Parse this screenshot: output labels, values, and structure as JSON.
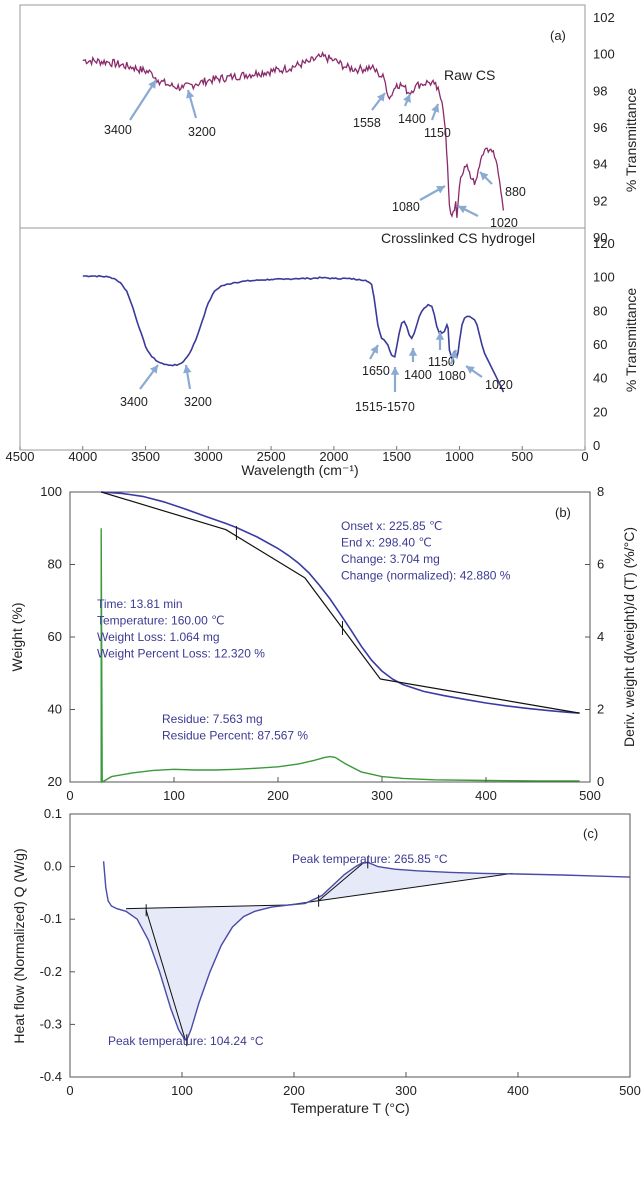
{
  "chart_data": [
    {
      "id": "a",
      "type": "line",
      "panel_label": "(a)",
      "xlabel": "Wavelength (cm⁻¹)",
      "xlim": [
        4500,
        0
      ],
      "x_ticks": [
        4500,
        4000,
        3500,
        3000,
        2500,
        2000,
        1500,
        1000,
        500,
        0
      ],
      "top": {
        "name": "Raw CS",
        "color": "#8a2a6a",
        "ylabel": "% Transmittance",
        "ylim": [
          90,
          102
        ],
        "y_ticks": [
          90,
          92,
          94,
          96,
          98,
          100,
          102
        ],
        "x": [
          4000,
          3800,
          3600,
          3450,
          3400,
          3300,
          3200,
          3100,
          3000,
          2800,
          2600,
          2400,
          2200,
          2100,
          2000,
          1900,
          1800,
          1700,
          1650,
          1600,
          1558,
          1500,
          1450,
          1400,
          1350,
          1300,
          1250,
          1200,
          1160,
          1150,
          1130,
          1110,
          1095,
          1080,
          1060,
          1040,
          1030,
          1020,
          1000,
          980,
          960,
          940,
          920,
          900,
          880,
          860,
          840,
          820,
          800,
          780,
          760,
          740,
          720,
          700,
          680,
          660,
          650
        ],
        "y": [
          99.7,
          99.6,
          99.3,
          99.0,
          98.6,
          98.3,
          98.2,
          98.4,
          98.6,
          98.8,
          99.0,
          99.2,
          99.6,
          99.9,
          99.7,
          99.3,
          99.2,
          99.3,
          99.0,
          98.7,
          97.6,
          98.4,
          98.3,
          97.9,
          98.3,
          98.4,
          98.5,
          98.4,
          97.9,
          97.6,
          97.0,
          95.8,
          94.0,
          91.8,
          91.2,
          91.5,
          92.0,
          91.1,
          92.8,
          93.4,
          93.9,
          94.0,
          93.6,
          93.2,
          92.9,
          93.3,
          93.9,
          94.5,
          94.8,
          94.9,
          94.8,
          94.7,
          94.4,
          94.0,
          93.1,
          92.1,
          91.5
        ]
      },
      "bottom": {
        "name": "Crosslinked CS hydrogel",
        "color": "#3a3a9a",
        "ylabel": "% Transmittance",
        "ylim": [
          0,
          120
        ],
        "y_ticks": [
          0,
          20,
          40,
          60,
          80,
          100,
          120
        ],
        "x": [
          4000,
          3900,
          3800,
          3750,
          3700,
          3650,
          3600,
          3550,
          3500,
          3450,
          3400,
          3350,
          3300,
          3250,
          3200,
          3150,
          3100,
          3050,
          3000,
          2950,
          2900,
          2800,
          2700,
          2600,
          2500,
          2400,
          2300,
          2200,
          2100,
          2000,
          1900,
          1800,
          1750,
          1700,
          1680,
          1650,
          1620,
          1600,
          1570,
          1540,
          1515,
          1480,
          1460,
          1440,
          1420,
          1400,
          1380,
          1360,
          1340,
          1320,
          1300,
          1280,
          1250,
          1220,
          1200,
          1180,
          1160,
          1150,
          1140,
          1120,
          1100,
          1090,
          1080,
          1060,
          1050,
          1040,
          1030,
          1020,
          1010,
          1000,
          980,
          960,
          940,
          920,
          900,
          880,
          860,
          840,
          820,
          800,
          780,
          760,
          740,
          720,
          700,
          680,
          660,
          650
        ],
        "y": [
          101,
          101,
          100.5,
          99.5,
          97,
          92,
          82,
          70,
          59,
          53,
          50,
          48.5,
          48,
          48,
          50,
          55,
          63,
          74,
          85,
          92,
          95,
          97,
          98,
          98.5,
          99,
          99,
          99.5,
          99.5,
          100,
          99.5,
          99.5,
          99,
          98.5,
          96,
          88,
          72,
          64,
          63,
          60,
          54,
          53,
          67,
          73,
          74,
          71,
          66,
          64,
          67,
          72,
          77,
          80,
          82,
          84,
          83,
          78,
          71,
          67,
          68,
          67,
          68,
          72,
          70,
          57,
          52,
          55,
          56,
          55,
          53,
          56,
          62,
          72,
          76,
          77,
          77,
          76,
          75,
          72,
          66,
          60,
          55,
          52,
          49,
          46,
          43,
          40,
          37,
          34,
          32
        ]
      },
      "annotations": [
        {
          "label": "3400",
          "plot": "top"
        },
        {
          "label": "3200",
          "plot": "top"
        },
        {
          "label": "1558",
          "plot": "top"
        },
        {
          "label": "1400",
          "plot": "top"
        },
        {
          "label": "1150",
          "plot": "top"
        },
        {
          "label": "1080",
          "plot": "top"
        },
        {
          "label": "880",
          "plot": "top"
        },
        {
          "label": "1020",
          "plot": "top"
        },
        {
          "label": "3400",
          "plot": "bottom"
        },
        {
          "label": "3200",
          "plot": "bottom"
        },
        {
          "label": "1650",
          "plot": "bottom"
        },
        {
          "label": "1515-1570",
          "plot": "bottom"
        },
        {
          "label": "1400",
          "plot": "bottom"
        },
        {
          "label": "1150",
          "plot": "bottom"
        },
        {
          "label": "1080",
          "plot": "bottom"
        },
        {
          "label": "1020",
          "plot": "bottom"
        }
      ]
    },
    {
      "id": "b",
      "type": "line",
      "panel_label": "(b)",
      "xlim": [
        0,
        500
      ],
      "x_ticks": [
        0,
        100,
        200,
        300,
        400,
        500
      ],
      "ylabel": "Weight (%)",
      "ylim": [
        20,
        100
      ],
      "y_ticks": [
        20,
        40,
        60,
        80,
        100
      ],
      "y2label": "Deriv. weight d(weight)/d (T) (%/°C)",
      "y2lim": [
        0,
        8
      ],
      "y2_ticks": [
        0,
        2,
        4,
        6,
        8
      ],
      "weight": {
        "color": "#3a3aa6",
        "x": [
          30,
          50,
          70,
          90,
          110,
          130,
          150,
          160,
          180,
          200,
          210,
          220,
          230,
          240,
          250,
          260,
          270,
          280,
          290,
          300,
          310,
          320,
          340,
          360,
          380,
          400,
          420,
          440,
          460,
          480,
          490
        ],
        "y": [
          100,
          99.6,
          98.8,
          97.3,
          95.4,
          93.3,
          91.3,
          90.2,
          87.6,
          84.4,
          82.5,
          80.3,
          77.6,
          74.2,
          70.5,
          66.3,
          62.0,
          57.5,
          53.6,
          50.6,
          48.4,
          46.9,
          45.0,
          43.8,
          42.8,
          41.8,
          41.0,
          40.3,
          39.7,
          39.2,
          39.0
        ]
      },
      "tangent_lines": [
        {
          "x": [
            30,
            150,
            225.85
          ],
          "y": [
            100,
            89.6,
            76.3
          ]
        },
        {
          "x": [
            225.85,
            298.4,
            490
          ],
          "y": [
            76.3,
            48.4,
            39.0
          ]
        }
      ],
      "onset_marks": [
        {
          "x": 160,
          "y": 88.7
        },
        {
          "x": 262,
          "y": 62.5
        }
      ],
      "derivative": {
        "color": "#3a9a3a",
        "x": [
          30,
          30,
          31,
          40,
          60,
          80,
          100,
          120,
          140,
          160,
          180,
          200,
          220,
          235,
          245,
          250,
          255,
          265,
          280,
          300,
          320,
          350,
          400,
          450,
          490
        ],
        "y": [
          0,
          7.0,
          0,
          0.15,
          0.25,
          0.32,
          0.35,
          0.33,
          0.33,
          0.35,
          0.38,
          0.42,
          0.5,
          0.6,
          0.68,
          0.7,
          0.68,
          0.5,
          0.28,
          0.15,
          0.1,
          0.06,
          0.04,
          0.03,
          0.03
        ]
      },
      "annotation_blocks": [
        {
          "lines": [
            "Time: 13.81 min",
            "Temperature: 160.00 ℃",
            "Weight Loss: 1.064 mg",
            "Weight Percent Loss: 12.320 %"
          ]
        },
        {
          "lines": [
            "Onset x: 225.85 ℃",
            "End x: 298.40 ℃",
            "Change: 3.704 mg",
            "Change (normalized): 42.880 %"
          ]
        },
        {
          "lines": [
            "Residue: 7.563 mg",
            "Residue Percent: 87.567 %"
          ]
        }
      ]
    },
    {
      "id": "c",
      "type": "line",
      "panel_label": "(c)",
      "xlabel": "Temperature T (°C)",
      "xlim": [
        0,
        500
      ],
      "x_ticks": [
        0,
        100,
        200,
        300,
        400,
        500
      ],
      "ylabel": "Heat flow (Normalized) Q (W/g)",
      "ylim": [
        -0.4,
        0.1
      ],
      "y_ticks": [
        -0.4,
        -0.3,
        -0.2,
        -0.1,
        0.0,
        0.1
      ],
      "y_tick_labels": [
        "-0.4",
        "-0.3",
        "-0.2",
        "-0.1",
        "0.0",
        "0.1"
      ],
      "curve": {
        "color": "#4a4aa8",
        "x": [
          30,
          32,
          34,
          37,
          42,
          50,
          60,
          70,
          80,
          90,
          97,
          102,
          104.24,
          108,
          115,
          125,
          135,
          145,
          155,
          165,
          180,
          195,
          210,
          225,
          235,
          245,
          255,
          260,
          265.85,
          275,
          290,
          310,
          340,
          370,
          400,
          440,
          470,
          500
        ],
        "y": [
          0.01,
          -0.04,
          -0.065,
          -0.075,
          -0.08,
          -0.085,
          -0.1,
          -0.14,
          -0.2,
          -0.27,
          -0.31,
          -0.327,
          -0.33,
          -0.31,
          -0.26,
          -0.2,
          -0.15,
          -0.115,
          -0.095,
          -0.085,
          -0.077,
          -0.073,
          -0.07,
          -0.055,
          -0.035,
          -0.015,
          0.0,
          0.006,
          0.008,
          0.0,
          -0.005,
          -0.008,
          -0.011,
          -0.013,
          -0.014,
          -0.016,
          -0.018,
          -0.02
        ]
      },
      "baselines": [
        {
          "x": [
            50,
            195
          ],
          "y": [
            -0.08,
            -0.073
          ]
        },
        {
          "x": [
            195,
            395
          ],
          "y": [
            -0.073,
            -0.013
          ]
        }
      ],
      "tangent_lines": [
        {
          "x": [
            68,
            103
          ],
          "y": [
            -0.083,
            -0.33
          ]
        },
        {
          "x": [
            222,
            262
          ],
          "y": [
            -0.065,
            0.007
          ]
        }
      ],
      "peaks": [
        {
          "label": "Peak temperature: 265.85 °C"
        },
        {
          "label": "Peak temperature: 104.24 °C"
        }
      ],
      "fill_color": "#e6e9f8"
    }
  ]
}
